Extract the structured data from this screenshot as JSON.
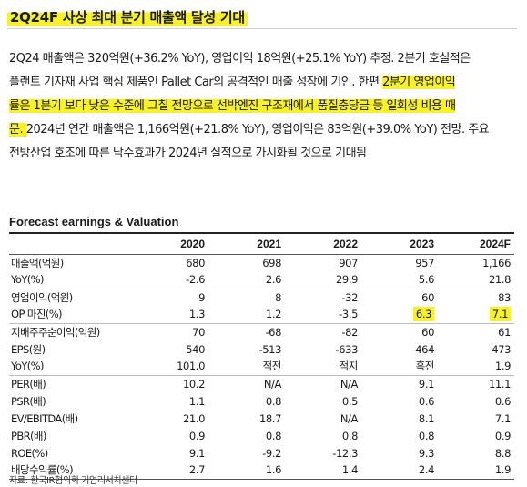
{
  "heading": "2Q24F 사상 최대 분기 매출액 달성 기대",
  "paragraph": {
    "l1": "2Q24 매출액은 320억원(+36.2% YoY), 영업이익 18억원(+25.1% YoY) 추정. 2분기 호실적은",
    "l2_a": "플랜트 기자재 사업 핵심 제품인 Pallet Car의 공격적인 매출 성장에 기인. 한편 ",
    "l2_b": "2분기 영업이익",
    "l3": "률은 1분기 보다 낮은 수준에 그칠 전망으로 선박엔진 구조재에서 품질충당금 등 일회성 비용 때",
    "l4_a": "문. ",
    "l4_b": "2024년 연간 매출액은 1,166억원(+21.8% YoY), 영업이익은 83억원(+39.0% YoY) 전망",
    "l4_c": ". 주요",
    "l5": "전방산업 호조에 따른 낙수효과가 2024년 실적으로 가시화될 것으로 기대됨"
  },
  "table": {
    "title": "Forecast earnings & Valuation",
    "headers": [
      "",
      "2020",
      "2021",
      "2022",
      "2023",
      "2024F"
    ],
    "rows": [
      {
        "label": "매출액(억원)",
        "values": [
          "680",
          "698",
          "907",
          "957",
          "1,166"
        ],
        "group_start": true
      },
      {
        "label": "YoY(%)",
        "values": [
          "-2.6",
          "2.6",
          "29.9",
          "5.6",
          "21.8"
        ]
      },
      {
        "label": "영업이익(억원)",
        "values": [
          "9",
          "8",
          "-32",
          "60",
          "83"
        ],
        "group_start": true
      },
      {
        "label": "OP 마진(%)",
        "values": [
          "1.3",
          "1.2",
          "-3.5",
          "6.3",
          "7.1"
        ]
      },
      {
        "label": "지배주주순이익(억원)",
        "values": [
          "70",
          "-68",
          "-82",
          "60",
          "61"
        ],
        "group_start": true
      },
      {
        "label": "EPS(원)",
        "values": [
          "540",
          "-513",
          "-633",
          "464",
          "473"
        ]
      },
      {
        "label": "YoY(%)",
        "values": [
          "101.0",
          "적전",
          "적지",
          "흑전",
          "1.9"
        ]
      },
      {
        "label": "PER(배)",
        "values": [
          "10.2",
          "N/A",
          "N/A",
          "9.1",
          "11.1"
        ],
        "group_start": true
      },
      {
        "label": "PSR(배)",
        "values": [
          "1.1",
          "0.8",
          "0.5",
          "0.6",
          "0.6"
        ]
      },
      {
        "label": "EV/EBITDA(배)",
        "values": [
          "21.0",
          "18.7",
          "N/A",
          "8.1",
          "7.1"
        ]
      },
      {
        "label": "PBR(배)",
        "values": [
          "0.9",
          "0.8",
          "0.8",
          "0.8",
          "0.9"
        ]
      },
      {
        "label": "ROE(%)",
        "values": [
          "9.1",
          "-9.2",
          "-12.3",
          "9.3",
          "8.8"
        ]
      },
      {
        "label": "배당수익률(%)",
        "values": [
          "2.7",
          "1.6",
          "1.4",
          "2.4",
          "1.9"
        ]
      }
    ],
    "highlight_color": "#f7f12a"
  },
  "source": "자료: 한국IR협의회 기업리서치센터"
}
